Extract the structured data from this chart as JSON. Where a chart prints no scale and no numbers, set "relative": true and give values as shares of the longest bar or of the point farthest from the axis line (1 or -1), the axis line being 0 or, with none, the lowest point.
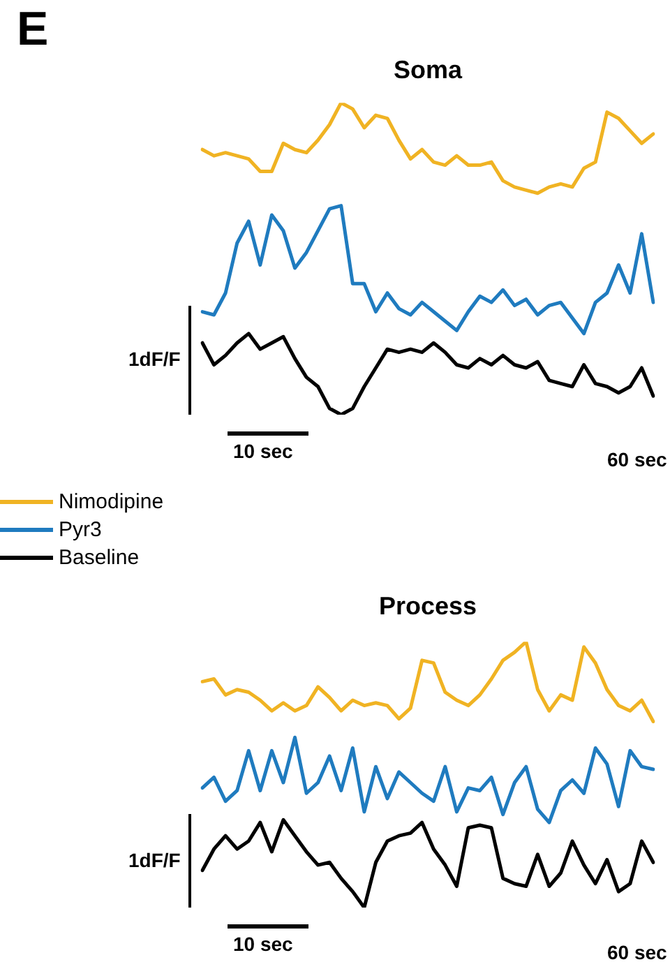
{
  "chart_data": [
    {
      "type": "line",
      "title": "Soma",
      "relative": true,
      "legend": "bottom left",
      "annotations": [
        "E",
        "1dF/F",
        "10 sec",
        "60 sec"
      ],
      "categories": [
        null,
        null,
        null,
        null,
        null,
        null,
        null,
        null,
        null,
        null,
        null,
        null,
        null,
        null,
        null,
        null,
        null,
        null,
        null,
        null,
        null,
        null,
        null,
        null,
        null,
        null,
        null,
        null,
        null,
        null,
        null,
        null,
        null,
        null,
        null,
        null,
        null,
        null,
        null,
        null
      ],
      "series": [
        {
          "name": "Nimodipine",
          "color": "#f0b323",
          "values": [
            0.85,
            0.83,
            0.84,
            0.83,
            0.82,
            0.78,
            0.78,
            0.87,
            0.85,
            0.84,
            0.88,
            0.93,
            1.0,
            0.98,
            0.92,
            0.96,
            0.95,
            0.88,
            0.82,
            0.85,
            0.81,
            0.8,
            0.83,
            0.8,
            0.8,
            0.81,
            0.75,
            0.73,
            0.72,
            0.71,
            0.73,
            0.74,
            0.73,
            0.79,
            0.81,
            0.97,
            0.95,
            0.91,
            0.87,
            0.9
          ]
        },
        {
          "name": "Pyr3",
          "color": "#1f7bbf",
          "values": [
            0.33,
            0.32,
            0.39,
            0.55,
            0.62,
            0.48,
            0.64,
            0.59,
            0.47,
            0.52,
            0.59,
            0.66,
            0.67,
            0.42,
            0.42,
            0.33,
            0.39,
            0.34,
            0.32,
            0.36,
            0.33,
            0.3,
            0.27,
            0.33,
            0.38,
            0.36,
            0.4,
            0.35,
            0.37,
            0.32,
            0.35,
            0.36,
            0.31,
            0.26,
            0.36,
            0.39,
            0.48,
            0.39,
            0.58,
            0.36
          ]
        },
        {
          "name": "Baseline",
          "color": "#000000",
          "values": [
            0.23,
            0.16,
            0.19,
            0.23,
            0.26,
            0.21,
            0.23,
            0.25,
            0.18,
            0.12,
            0.09,
            0.02,
            0.0,
            0.02,
            0.09,
            0.15,
            0.21,
            0.2,
            0.21,
            0.2,
            0.23,
            0.2,
            0.16,
            0.15,
            0.18,
            0.16,
            0.19,
            0.16,
            0.15,
            0.17,
            0.11,
            0.1,
            0.09,
            0.16,
            0.1,
            0.09,
            0.07,
            0.09,
            0.15,
            0.06
          ]
        }
      ]
    },
    {
      "type": "line",
      "title": "Process",
      "relative": true,
      "annotations": [
        "1dF/F",
        "10 sec",
        "60 sec"
      ],
      "categories": [
        null,
        null,
        null,
        null,
        null,
        null,
        null,
        null,
        null,
        null,
        null,
        null,
        null,
        null,
        null,
        null,
        null,
        null,
        null,
        null,
        null,
        null,
        null,
        null,
        null,
        null,
        null,
        null,
        null,
        null,
        null,
        null,
        null,
        null,
        null,
        null,
        null,
        null,
        null,
        null
      ],
      "series": [
        {
          "color": "#f0b323",
          "values": [
            0.85,
            0.86,
            0.8,
            0.82,
            0.81,
            0.78,
            0.74,
            0.77,
            0.74,
            0.76,
            0.83,
            0.79,
            0.74,
            0.78,
            0.76,
            0.77,
            0.76,
            0.71,
            0.75,
            0.93,
            0.92,
            0.81,
            0.78,
            0.76,
            0.8,
            0.86,
            0.93,
            0.96,
            1.0,
            0.82,
            0.74,
            0.8,
            0.78,
            0.98,
            0.92,
            0.82,
            0.76,
            0.74,
            0.78,
            0.7
          ]
        },
        {
          "color": "#1f7bbf",
          "values": [
            0.45,
            0.49,
            0.4,
            0.44,
            0.59,
            0.44,
            0.59,
            0.47,
            0.64,
            0.43,
            0.47,
            0.57,
            0.44,
            0.6,
            0.36,
            0.53,
            0.41,
            0.51,
            0.47,
            0.43,
            0.4,
            0.53,
            0.36,
            0.45,
            0.44,
            0.49,
            0.35,
            0.47,
            0.53,
            0.37,
            0.32,
            0.44,
            0.48,
            0.43,
            0.6,
            0.54,
            0.38,
            0.59,
            0.53,
            0.52
          ]
        },
        {
          "color": "#000000",
          "values": [
            0.14,
            0.22,
            0.27,
            0.22,
            0.25,
            0.32,
            0.21,
            0.33,
            0.27,
            0.21,
            0.16,
            0.17,
            0.11,
            0.06,
            0.0,
            0.17,
            0.25,
            0.27,
            0.28,
            0.32,
            0.22,
            0.16,
            0.08,
            0.3,
            0.31,
            0.3,
            0.11,
            0.09,
            0.08,
            0.2,
            0.08,
            0.13,
            0.25,
            0.16,
            0.09,
            0.18,
            0.06,
            0.09,
            0.25,
            0.17
          ]
        }
      ]
    }
  ]
}
